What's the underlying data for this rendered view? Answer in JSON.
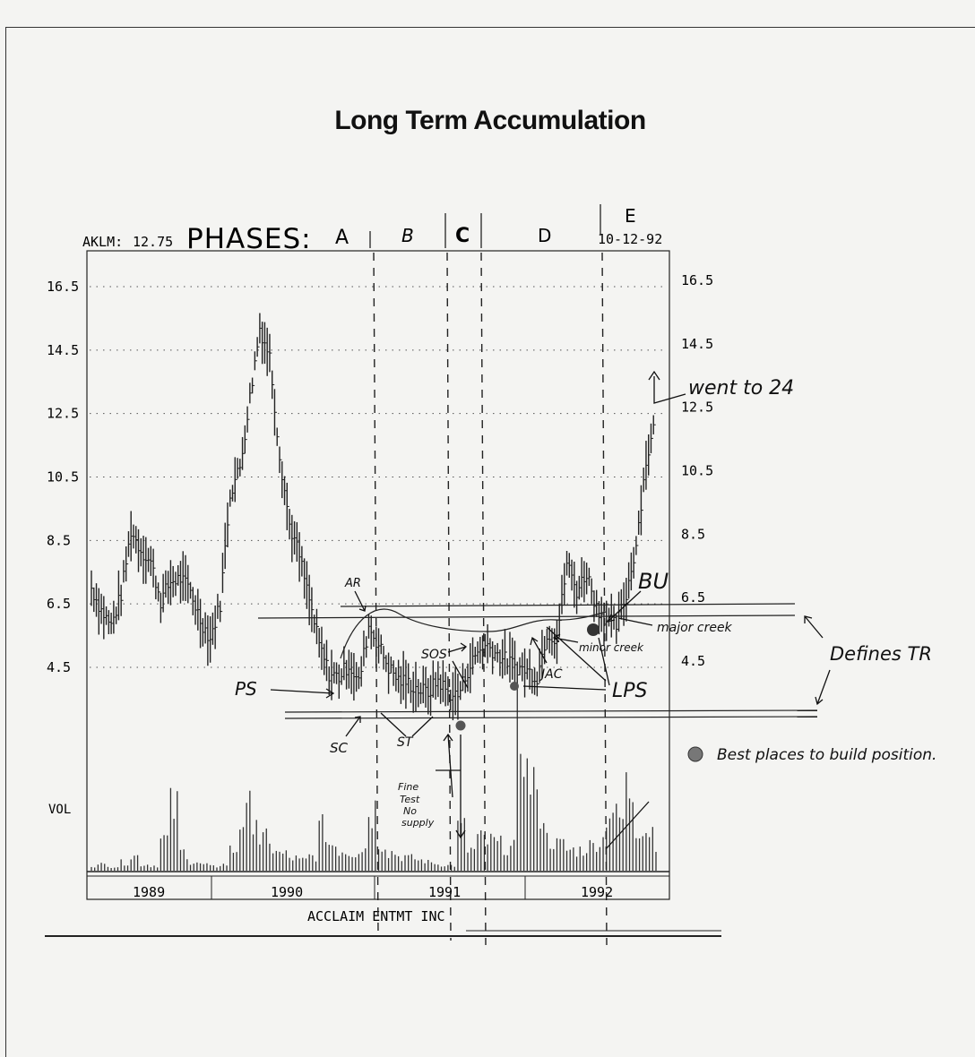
{
  "page": {
    "title": "Long Term Accumulation"
  },
  "chart_data": {
    "type": "bar",
    "description_header": {
      "ticker": "AKLM:",
      "last_price": "12.75",
      "phases_label": "PHASES:",
      "phases": [
        "A",
        "B",
        "C",
        "D",
        "E"
      ],
      "date": "10-12-92"
    },
    "company": "ACCLAIM ENTMT INC",
    "volume_label": "VOL",
    "x_tick_labels": [
      "1989",
      "1990",
      "1991",
      "1992"
    ],
    "y_tick_labels": [
      "16.5",
      "14.5",
      "12.5",
      "10.5",
      "8.5",
      "6.5",
      "4.5"
    ],
    "ylim": [
      3.0,
      17.5
    ],
    "grid": true,
    "series": [
      {
        "kind": "weekly-price",
        "x_months": [
          0,
          1,
          2,
          3,
          4,
          5,
          6,
          7,
          8,
          9,
          10,
          11,
          12,
          13,
          14,
          15,
          16,
          17,
          18,
          19,
          20,
          21,
          22,
          23,
          24,
          25,
          26,
          27,
          28,
          29,
          30,
          31,
          32,
          33,
          34,
          35,
          36,
          37,
          38,
          39,
          40,
          41,
          42,
          43,
          44,
          45,
          46,
          47,
          48,
          49,
          50,
          51,
          52,
          53,
          54,
          55,
          56,
          57
        ],
        "values": [
          7.0,
          6.3,
          5.8,
          6.8,
          8.8,
          8.2,
          7.8,
          6.6,
          7.2,
          7.3,
          6.9,
          6.0,
          5.4,
          6.5,
          10.0,
          10.8,
          13.0,
          15.2,
          14.3,
          11.2,
          9.0,
          8.0,
          6.6,
          5.2,
          4.3,
          4.2,
          4.6,
          4.0,
          5.8,
          5.2,
          4.5,
          4.1,
          4.0,
          3.8,
          3.7,
          4.1,
          3.7,
          3.6,
          4.4,
          5.0,
          5.2,
          4.9,
          4.7,
          4.5,
          4.4,
          4.2,
          5.6,
          5.4,
          7.8,
          6.9,
          7.5,
          6.4,
          6.0,
          5.8,
          6.8,
          8.4,
          11.0,
          12.3
        ]
      }
    ],
    "volume": [
      5,
      6,
      4,
      8,
      14,
      6,
      5,
      30,
      60,
      18,
      8,
      6,
      4,
      6,
      20,
      50,
      58,
      30,
      22,
      16,
      12,
      10,
      14,
      40,
      26,
      20,
      18,
      22,
      60,
      28,
      18,
      14,
      12,
      10,
      8,
      6,
      5,
      40,
      20,
      30,
      28,
      25,
      22,
      140,
      90,
      60,
      30,
      25,
      20,
      20,
      24,
      30,
      60,
      50,
      80,
      45,
      40,
      30
    ],
    "annotations": [
      "AR",
      "PS",
      "SC",
      "ST",
      "SOS",
      "JAC",
      "LPS",
      "BU",
      "major creek",
      "minor creek",
      "Defines TR",
      "went to 24",
      "Fine Test No supply",
      "Best places to build position."
    ]
  }
}
